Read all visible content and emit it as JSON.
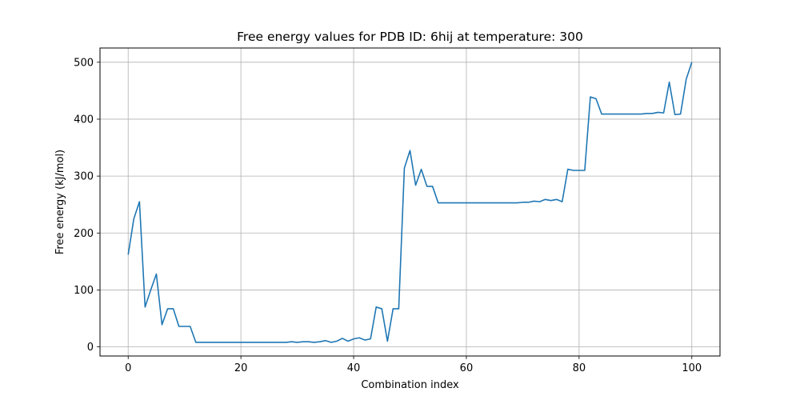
{
  "chart_data": {
    "type": "line",
    "title": "Free energy values for PDB ID: 6hij at temperature: 300",
    "xlabel": "Combination index",
    "ylabel": "Free energy (kJ/mol)",
    "xlim": [
      -5,
      105
    ],
    "ylim": [
      -16,
      525
    ],
    "xticks": [
      0,
      20,
      40,
      60,
      80,
      100
    ],
    "yticks": [
      0,
      100,
      200,
      300,
      400,
      500
    ],
    "grid": true,
    "color": "#1f77b4",
    "series": [
      {
        "x": [
          0,
          1,
          2,
          3,
          4,
          5,
          6,
          7,
          8,
          9,
          10,
          11,
          12,
          13,
          14,
          15,
          16,
          17,
          18,
          19,
          20,
          21,
          22,
          23,
          24,
          25,
          26,
          27,
          28,
          29,
          30,
          31,
          32,
          33,
          34,
          35,
          36,
          37,
          38,
          39,
          40,
          41,
          42,
          43,
          44,
          45,
          46,
          47,
          48,
          49,
          50,
          51,
          52,
          53,
          54,
          55,
          56,
          57,
          58,
          59,
          60,
          61,
          62,
          63,
          64,
          65,
          66,
          67,
          68,
          69,
          70,
          71,
          72,
          73,
          74,
          75,
          76,
          77,
          78,
          79,
          80,
          81,
          82,
          83,
          84,
          85,
          86,
          87,
          88,
          89,
          90,
          91,
          92,
          93,
          94,
          95,
          96,
          97,
          98,
          99,
          100
        ],
        "values": [
          162,
          225,
          255,
          70,
          100,
          128,
          39,
          67,
          67,
          36,
          36,
          36,
          8,
          8,
          8,
          8,
          8,
          8,
          8,
          8,
          8,
          8,
          8,
          8,
          8,
          8,
          8,
          8,
          8,
          9,
          8,
          9,
          9,
          8,
          9,
          11,
          8,
          10,
          15,
          10,
          14,
          16,
          12,
          14,
          70,
          67,
          10,
          67,
          67,
          314,
          345,
          284,
          312,
          282,
          282,
          253,
          253,
          253,
          253,
          253,
          253,
          253,
          253,
          253,
          253,
          253,
          253,
          253,
          253,
          253,
          254,
          254,
          256,
          255,
          259,
          257,
          259,
          255,
          312,
          310,
          310,
          310,
          439,
          436,
          409,
          409,
          409,
          409,
          409,
          409,
          409,
          409,
          410,
          410,
          412,
          411,
          465,
          408,
          409,
          470,
          500
        ]
      }
    ]
  }
}
